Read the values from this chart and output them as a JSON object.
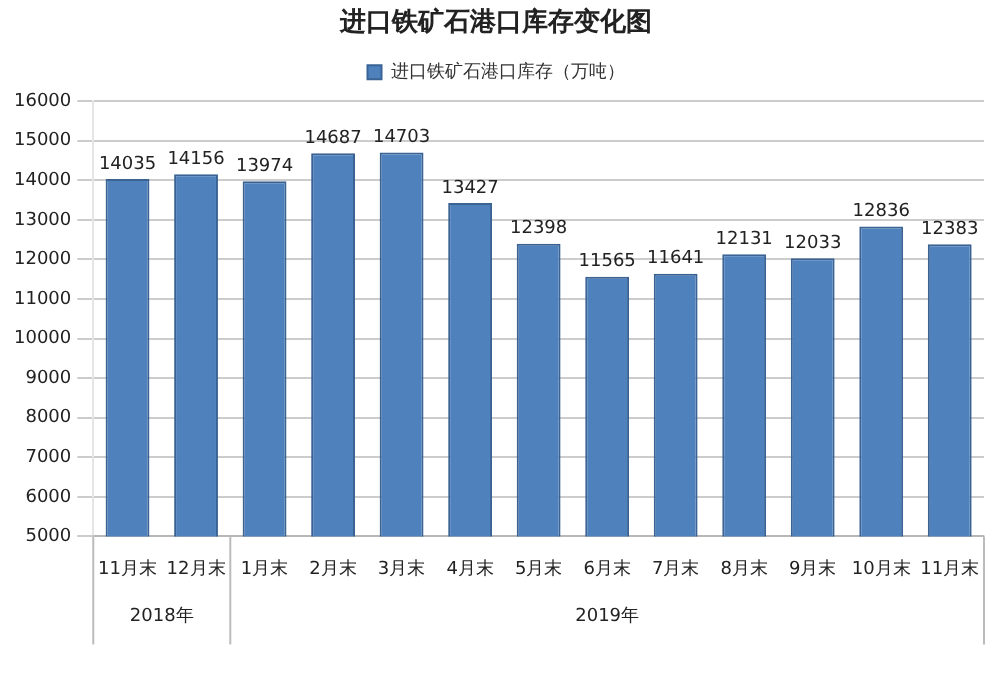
{
  "chart_data": {
    "type": "bar",
    "title": "进口铁矿石港口库存变化图",
    "categories": [
      "11月末",
      "12月末",
      "1月末",
      "2月末",
      "3月末",
      "4月末",
      "5月末",
      "6月末",
      "7月末",
      "8月末",
      "9月末",
      "10月末",
      "11月末"
    ],
    "series": [
      {
        "name": "进口铁矿石港口库存（万吨）",
        "color": "#4f81bd",
        "values": [
          14035,
          14156,
          13974,
          14687,
          14703,
          13427,
          12398,
          11565,
          11641,
          12131,
          12033,
          12836,
          12383
        ]
      }
    ],
    "ylim": [
      5000,
      16000
    ],
    "yticks": [
      5000,
      6000,
      7000,
      8000,
      9000,
      10000,
      11000,
      12000,
      13000,
      14000,
      15000,
      16000
    ],
    "grid": "y",
    "legend": "top",
    "data_labels": true,
    "annotations": [
      "2018年",
      "2019年"
    ]
  }
}
